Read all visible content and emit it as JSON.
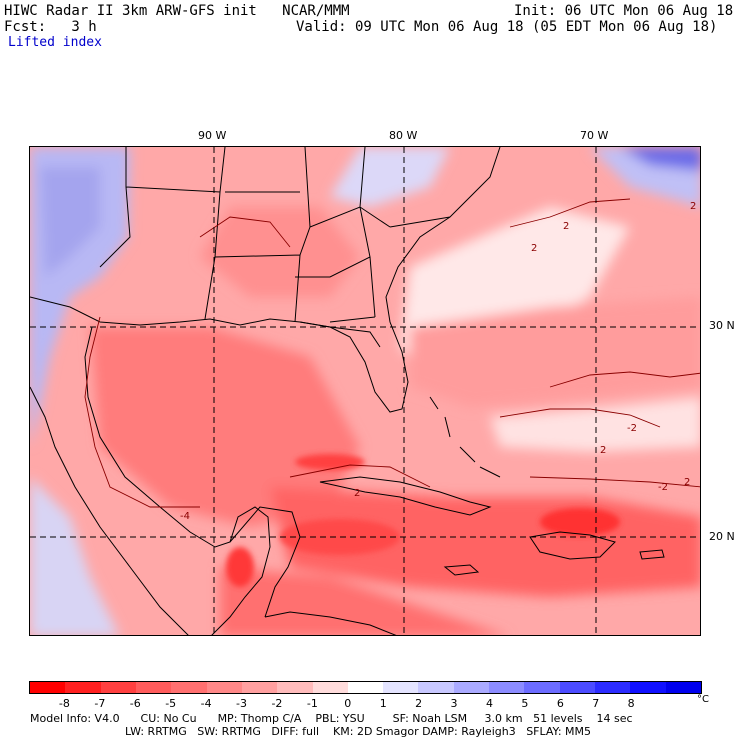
{
  "header": {
    "title": "HIWC Radar II 3km ARW-GFS init   NCAR/MMM",
    "init": "Init: 06 UTC Mon 06 Aug 18",
    "fcst_label": "Fcst:   3 h",
    "valid": "Valid: 09 UTC Mon 06 Aug 18 (05 EDT Mon 06 Aug 18)",
    "field": "Lifted index"
  },
  "map": {
    "lon_labels": [
      "90 W",
      "80 W",
      "70 W"
    ],
    "lat_labels": [
      "30 N",
      "20 N"
    ],
    "contour_labels": [
      "2",
      "2",
      "2",
      "-2",
      "2",
      "-2",
      "2",
      "2",
      "-4"
    ]
  },
  "colorbar": {
    "labels": [
      "-8",
      "-7",
      "-6",
      "-5",
      "-4",
      "-3",
      "-2",
      "-1",
      "0",
      "1",
      "2",
      "3",
      "4",
      "5",
      "6",
      "7",
      "8"
    ],
    "unit": "°C",
    "colors": [
      "#ff0000",
      "#ff2020",
      "#ff4040",
      "#ff5c5c",
      "#ff7070",
      "#ff8888",
      "#ffa0a0",
      "#ffbcbc",
      "#ffdcdc",
      "#ffffff",
      "#e4e4ff",
      "#c8c8ff",
      "#aaaaff",
      "#8c8cff",
      "#6c6cff",
      "#4c4cff",
      "#2c2cff",
      "#1010ff",
      "#0000ee"
    ]
  },
  "footer": {
    "line1": "Model Info: V4.0      CU: No Cu      MP: Thomp C/A    PBL: YSU        SF: Noah LSM     3.0 km   51 levels    14 sec",
    "line2": "LW: RRTMG   SW: RRTMG   DIFF: full    KM: 2D Smagor DAMP: Rayleigh3   SFLAY: MM5"
  }
}
